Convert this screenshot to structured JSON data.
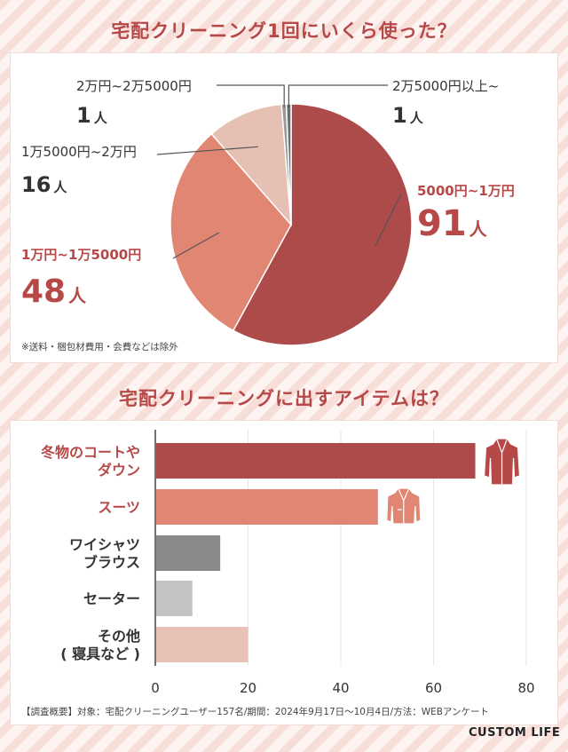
{
  "chart_data": [
    {
      "type": "pie",
      "title": "宅配クリーニング1回にいくら使った？",
      "unit": "人",
      "note": "※送料・梱包材費用・会費などは除外",
      "slices": [
        {
          "label": "5000円~1万円",
          "value": 91,
          "color": "#ad4b4b"
        },
        {
          "label": "1万円~1万5000円",
          "value": 48,
          "color": "#e08672"
        },
        {
          "label": "1万5000円~2万円",
          "value": 16,
          "color": "#e5c0b3"
        },
        {
          "label": "2万円~2万5000円",
          "value": 1,
          "color": "#9a9a9a"
        },
        {
          "label": "2万5000円以上~",
          "value": 1,
          "color": "#6e6e6e"
        }
      ]
    },
    {
      "type": "bar",
      "orientation": "horizontal",
      "title": "宅配クリーニングに出すアイテムは？",
      "categories": [
        [
          "冬物のコートや",
          "ダウン"
        ],
        [
          "スーツ"
        ],
        [
          "ワイシャツ",
          "ブラウス"
        ],
        [
          "セーター"
        ],
        [
          "その他",
          "( 寝具など )"
        ]
      ],
      "values": [
        69,
        48,
        14,
        8,
        20
      ],
      "colors": [
        "#ad4b4b",
        "#e08672",
        "#8a8a8a",
        "#c4c4c4",
        "#e8c2b6"
      ],
      "label_colors": [
        "#b64948",
        "#b64948",
        "#333333",
        "#333333",
        "#333333"
      ],
      "xlim": [
        0,
        80
      ],
      "xticks": [
        0,
        20,
        40,
        60,
        80
      ],
      "grid": true,
      "icons": [
        "coat-icon",
        "suit-icon"
      ]
    }
  ],
  "footer": "【調査概要】対象：宅配クリーニングユーザー157名/期間：2024年9月17日〜10月4日/方法：WEBアンケート",
  "logo": "CUSTOM LIFE"
}
